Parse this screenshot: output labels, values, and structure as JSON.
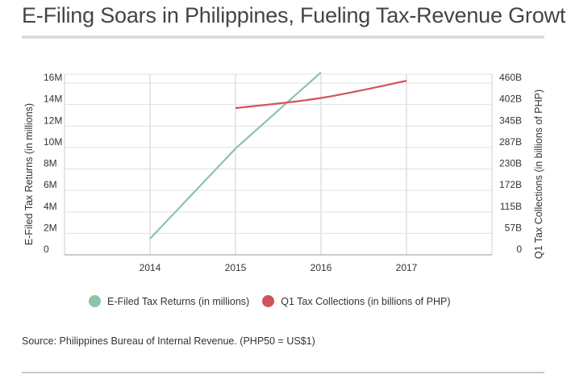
{
  "title": "E-Filing Soars in Philippines, Fueling Tax-Revenue Growth",
  "source": "Source: Philippines Bureau of Internal Revenue.  (PHP50 = US$1)",
  "chart_data": {
    "type": "line",
    "xlabel": "",
    "ylabel": "E-Filed Tax Returns (in millions)",
    "ylabel_right": "Q1 Tax Collections (in billions of PHP)",
    "x_ticks": [
      "2014",
      "2015",
      "2016",
      "2017"
    ],
    "y_ticks": [
      "0",
      "2M",
      "4M",
      "6M",
      "8M",
      "10M",
      "12M",
      "14M",
      "16M"
    ],
    "y_right_ticks": [
      "0",
      "57B",
      "115B",
      "172B",
      "230B",
      "287B",
      "345B",
      "402B",
      "460B"
    ],
    "ylim": [
      0,
      16
    ],
    "ylim_right": [
      0,
      460
    ],
    "grid": true,
    "legend_position": "bottom",
    "series": [
      {
        "name": "E-Filed Tax Returns (in millions)",
        "axis": "left",
        "color": "#8cc4a5",
        "points": [
          {
            "x": 2014,
            "y": 1.5
          },
          {
            "x": 2015,
            "y": 9.9
          },
          {
            "x": 2016,
            "y": 17.0
          }
        ]
      },
      {
        "name": "Q1 Tax Collections (in billions of PHP)",
        "axis": "right",
        "color": "#d1545a",
        "points": [
          {
            "x": 2015,
            "y": 393
          },
          {
            "x": 2016,
            "y": 420
          },
          {
            "x": 2017,
            "y": 466
          }
        ]
      }
    ]
  }
}
